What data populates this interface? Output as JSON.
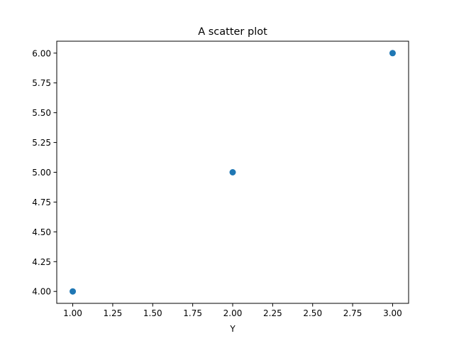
{
  "chart_data": {
    "type": "scatter",
    "title": "A scatter plot",
    "xlabel": "Y",
    "ylabel": "",
    "xlim": [
      0.9,
      3.1
    ],
    "ylim": [
      3.9,
      6.1
    ],
    "x_ticks": [
      1.0,
      1.25,
      1.5,
      1.75,
      2.0,
      2.25,
      2.5,
      2.75,
      3.0
    ],
    "y_ticks": [
      4.0,
      4.25,
      4.5,
      4.75,
      5.0,
      5.25,
      5.5,
      5.75,
      6.0
    ],
    "grid": false,
    "series": [
      {
        "color": "#1f77b4",
        "points": [
          {
            "x": 1.0,
            "y": 4.0
          },
          {
            "x": 2.0,
            "y": 5.0
          },
          {
            "x": 3.0,
            "y": 6.0
          }
        ]
      }
    ]
  }
}
